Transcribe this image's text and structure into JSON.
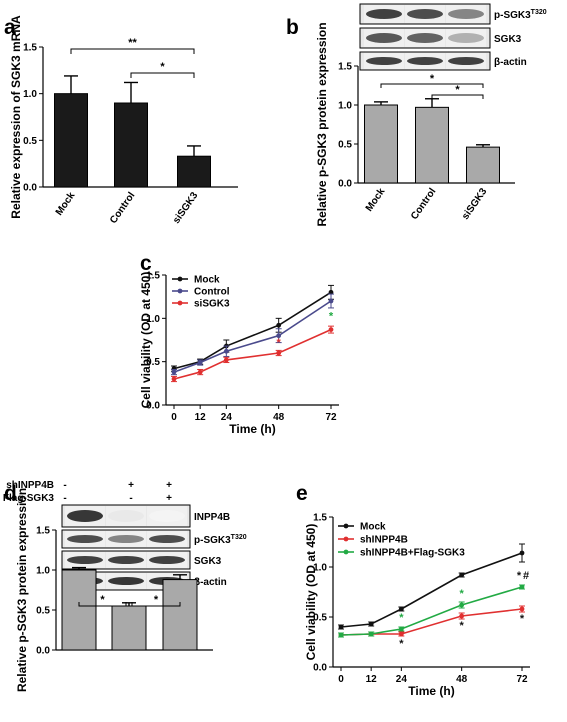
{
  "panel_labels": [
    "a",
    "b",
    "c",
    "d",
    "e"
  ],
  "chart_data": [
    {
      "panel": "a",
      "type": "bar",
      "ylabel": "Relative expression of SGK3 mRNA",
      "xlabel": "",
      "ylim": [
        0,
        1.5
      ],
      "yticks": [
        "0.0",
        "0.5",
        "1.0",
        "1.5"
      ],
      "categories": [
        "Mock",
        "Control",
        "siSGK3"
      ],
      "values": [
        1.0,
        0.9,
        0.33
      ],
      "errors": [
        0.19,
        0.22,
        0.11
      ],
      "bar_color": "#1a1a1a",
      "significance": [
        "**",
        "*"
      ]
    },
    {
      "panel": "b",
      "type": "bar",
      "ylabel": "Relative p-SGK3 protein expression",
      "xlabel": "",
      "ylim": [
        0,
        1.5
      ],
      "yticks": [
        "0.0",
        "0.5",
        "1.0",
        "1.5"
      ],
      "categories": [
        "Mock",
        "Control",
        "siSGK3"
      ],
      "values": [
        1.0,
        0.97,
        0.46
      ],
      "errors": [
        0.04,
        0.11,
        0.03
      ],
      "bar_color": "#a9a9a9",
      "significance": [
        "*",
        "*"
      ],
      "blot_bands": [
        "p-SGK3",
        "SGK3",
        "β-actin"
      ],
      "blot_superscript": "T320"
    },
    {
      "panel": "c",
      "type": "line",
      "ylabel": "Cell viability (OD at 450)",
      "xlabel": "Time (h)",
      "x": [
        0,
        12,
        24,
        48,
        72
      ],
      "xticks": [
        "0",
        "12",
        "24",
        "48",
        "72"
      ],
      "ylim": [
        0,
        1.5
      ],
      "yticks": [
        "0.0",
        "0.5",
        "1.0",
        "1.5"
      ],
      "series": [
        {
          "name": "Mock",
          "color": "#111111",
          "values": [
            0.42,
            0.5,
            0.68,
            0.92,
            1.3
          ],
          "errors": [
            0.03,
            0.03,
            0.07,
            0.08,
            0.08
          ]
        },
        {
          "name": "Control",
          "color": "#4a4a8c",
          "values": [
            0.38,
            0.49,
            0.62,
            0.8,
            1.2
          ],
          "errors": [
            0.03,
            0.03,
            0.06,
            0.08,
            0.08
          ]
        },
        {
          "name": "siSGK3",
          "color": "#e03030",
          "values": [
            0.3,
            0.38,
            0.52,
            0.6,
            0.87
          ],
          "errors": [
            0.03,
            0.03,
            0.03,
            0.03,
            0.04
          ]
        }
      ],
      "significance": [
        "*",
        "*"
      ]
    },
    {
      "panel": "d",
      "type": "bar",
      "ylabel": "Relative p-SGK3 protein expression",
      "xlabel": "",
      "ylim": [
        0,
        1.5
      ],
      "yticks": [
        "0.0",
        "0.5",
        "1.0",
        "1.5"
      ],
      "categories": [
        "",
        "",
        ""
      ],
      "values": [
        1.0,
        0.55,
        0.88
      ],
      "errors": [
        0.03,
        0.04,
        0.06
      ],
      "bar_color": "#a9a9a9",
      "significance": [
        "*",
        "*"
      ],
      "conditions": [
        {
          "label": "shINPP4B",
          "marks": [
            "-",
            "+",
            "+"
          ]
        },
        {
          "label": "Flag-SGK3",
          "marks": [
            "-",
            "-",
            "+"
          ]
        }
      ],
      "blot_bands": [
        "INPP4B",
        "p-SGK3",
        "SGK3",
        "β-actin"
      ],
      "blot_superscript": "T320"
    },
    {
      "panel": "e",
      "type": "line",
      "ylabel": "Cell viability (OD at 450)",
      "xlabel": "Time (h)",
      "x": [
        0,
        12,
        24,
        48,
        72
      ],
      "xticks": [
        "0",
        "12",
        "24",
        "48",
        "72"
      ],
      "ylim": [
        0,
        1.5
      ],
      "yticks": [
        "0.0",
        "0.5",
        "1.0",
        "1.5"
      ],
      "series": [
        {
          "name": "Mock",
          "color": "#111111",
          "values": [
            0.4,
            0.43,
            0.58,
            0.92,
            1.14
          ],
          "errors": [
            0.02,
            0.02,
            0.02,
            0.02,
            0.09
          ]
        },
        {
          "name": "shINPP4B",
          "color": "#e03030",
          "values": [
            0.32,
            0.33,
            0.33,
            0.51,
            0.58
          ],
          "errors": [
            0.02,
            0.02,
            0.02,
            0.03,
            0.03
          ]
        },
        {
          "name": "shINPP4B+Flag-SGK3",
          "color": "#22aa44",
          "values": [
            0.32,
            0.33,
            0.38,
            0.62,
            0.8
          ],
          "errors": [
            0.02,
            0.02,
            0.02,
            0.03,
            0.02
          ]
        }
      ],
      "significance": [
        "*",
        "*",
        "*",
        "*",
        "*",
        "*",
        "#"
      ]
    }
  ]
}
